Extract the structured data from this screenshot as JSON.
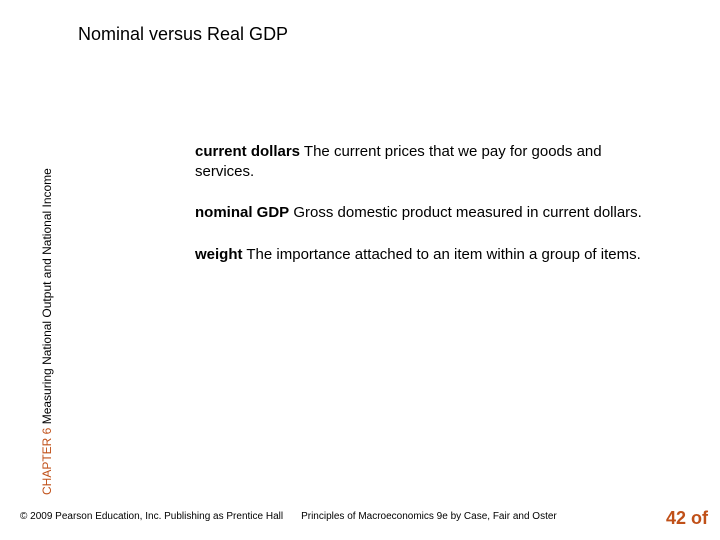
{
  "title": "Nominal versus Real GDP",
  "sidebar": {
    "chapter_label": "CHAPTER 6",
    "chapter_title": "Measuring National Output and National Income"
  },
  "definitions": [
    {
      "term": "current dollars",
      "text": "  The current prices that we pay for goods and services."
    },
    {
      "term": "nominal GDP",
      "text": "  Gross domestic product measured in current dollars."
    },
    {
      "term": "weight",
      "text": "  The importance attached to an item within a group of items."
    }
  ],
  "footer": {
    "copyright": "© 2009 Pearson Education, Inc. Publishing as Prentice Hall",
    "book": "Principles of Macroeconomics 9e by Case, Fair and Oster"
  },
  "page": {
    "number": "42",
    "of_label": "of"
  },
  "colors": {
    "accent": "#c05018",
    "text": "#000000",
    "background": "#ffffff"
  }
}
